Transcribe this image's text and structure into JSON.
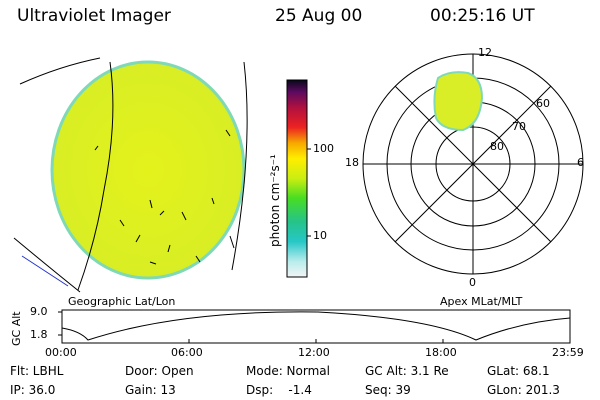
{
  "header": {
    "instrument": "Ultraviolet Imager",
    "date": "25 Aug 00",
    "time": "00:25:16 UT"
  },
  "colorbar": {
    "label": "photon cm⁻²s⁻¹",
    "ticks": [
      "100",
      "10"
    ]
  },
  "polar": {
    "mlt_labels": {
      "top": "12",
      "left": "18",
      "right": "6",
      "bottom": "0"
    },
    "lat_labels": [
      "60",
      "70",
      "80"
    ]
  },
  "panels": {
    "left_caption": "Geographic Lat/Lon",
    "right_caption": "Apex MLat/MLT"
  },
  "altitude_plot": {
    "ylabel": "GC Alt",
    "y_ticks": [
      "9.0",
      "1.8"
    ],
    "x_ticks": [
      "00:00",
      "06:00",
      "12:00",
      "18:00",
      "23:59"
    ]
  },
  "info": {
    "row1": [
      "Flt: LBHL",
      "Door: Open",
      "Mode: Normal",
      "GC Alt: 3.1 Re",
      "GLat: 68.1"
    ],
    "row2": [
      "IP: 36.0",
      "Gain: 13",
      "Dsp:    -1.4",
      "Seq: 39",
      "GLon: 201.3"
    ]
  }
}
